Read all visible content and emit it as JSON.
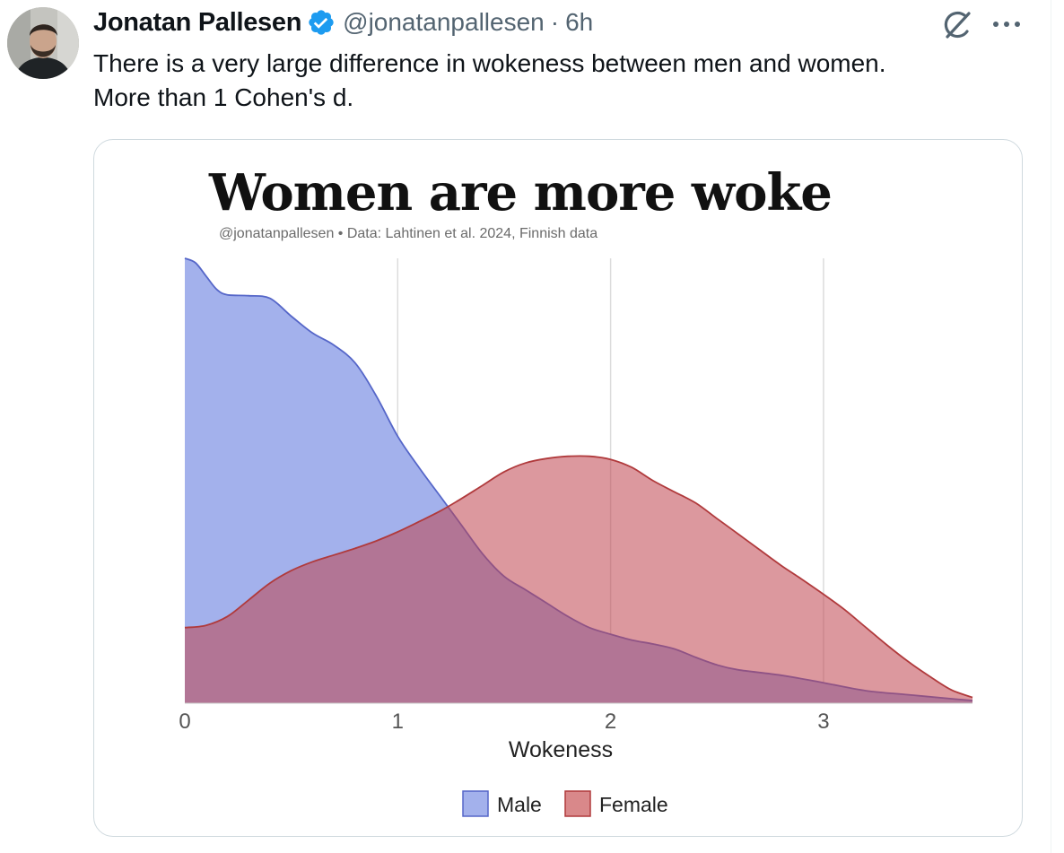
{
  "tweet": {
    "author_name": "Jonatan Pallesen",
    "handle": "@jonatanpallesen",
    "separator": "·",
    "time": "6h",
    "text_lines": [
      "There is a very large difference in wokeness between men and women.",
      "More than 1 Cohen's d."
    ]
  },
  "icons": {
    "verified": "verified-badge-icon",
    "grok": "grok-icon",
    "more": "more-options-icon",
    "avatar": "avatar"
  },
  "colors": {
    "verified_blue": "#1d9bf0",
    "male_fill": "#a3b1ec",
    "male_line": "#5566c8",
    "female_fill": "#d9888a",
    "female_line": "#b03a3c",
    "overlap": "#ae7287"
  },
  "chart_data": {
    "type": "area",
    "title": "Women are more woke",
    "subtitle": "@jonatanpallesen • Data: Lahtinen et al. 2024, Finnish data",
    "xlabel": "Wokeness",
    "ylabel": "",
    "xlim": [
      0,
      3.7
    ],
    "ylim": [
      0,
      1.0
    ],
    "xticks": [
      0,
      1,
      2,
      3
    ],
    "grid": "vertical",
    "legend": "bottom",
    "series": [
      {
        "name": "Male",
        "color": "#a3b1ec",
        "x": [
          0,
          0.05,
          0.1,
          0.15,
          0.2,
          0.3,
          0.4,
          0.5,
          0.6,
          0.7,
          0.8,
          0.9,
          1.0,
          1.1,
          1.2,
          1.3,
          1.4,
          1.5,
          1.6,
          1.7,
          1.8,
          1.9,
          2.0,
          2.1,
          2.2,
          2.3,
          2.4,
          2.5,
          2.6,
          2.8,
          3.0,
          3.2,
          3.4,
          3.6,
          3.7
        ],
        "y": [
          1.0,
          0.99,
          0.96,
          0.93,
          0.918,
          0.916,
          0.91,
          0.87,
          0.832,
          0.805,
          0.765,
          0.69,
          0.6,
          0.53,
          0.465,
          0.4,
          0.335,
          0.285,
          0.255,
          0.225,
          0.195,
          0.17,
          0.155,
          0.142,
          0.133,
          0.122,
          0.103,
          0.086,
          0.075,
          0.063,
          0.046,
          0.028,
          0.019,
          0.01,
          0.006
        ]
      },
      {
        "name": "Female",
        "color": "#d9888a",
        "x": [
          0,
          0.1,
          0.2,
          0.3,
          0.4,
          0.5,
          0.6,
          0.7,
          0.8,
          0.9,
          1.0,
          1.1,
          1.2,
          1.3,
          1.4,
          1.5,
          1.6,
          1.7,
          1.8,
          1.9,
          2.0,
          2.1,
          2.2,
          2.3,
          2.4,
          2.5,
          2.6,
          2.7,
          2.8,
          2.9,
          3.0,
          3.1,
          3.2,
          3.3,
          3.4,
          3.5,
          3.6,
          3.7
        ],
        "y": [
          0.17,
          0.175,
          0.195,
          0.232,
          0.27,
          0.298,
          0.318,
          0.333,
          0.348,
          0.365,
          0.385,
          0.408,
          0.432,
          0.46,
          0.49,
          0.52,
          0.54,
          0.55,
          0.555,
          0.555,
          0.548,
          0.53,
          0.5,
          0.475,
          0.45,
          0.415,
          0.38,
          0.345,
          0.31,
          0.278,
          0.245,
          0.21,
          0.17,
          0.13,
          0.093,
          0.06,
          0.03,
          0.013
        ]
      }
    ]
  }
}
